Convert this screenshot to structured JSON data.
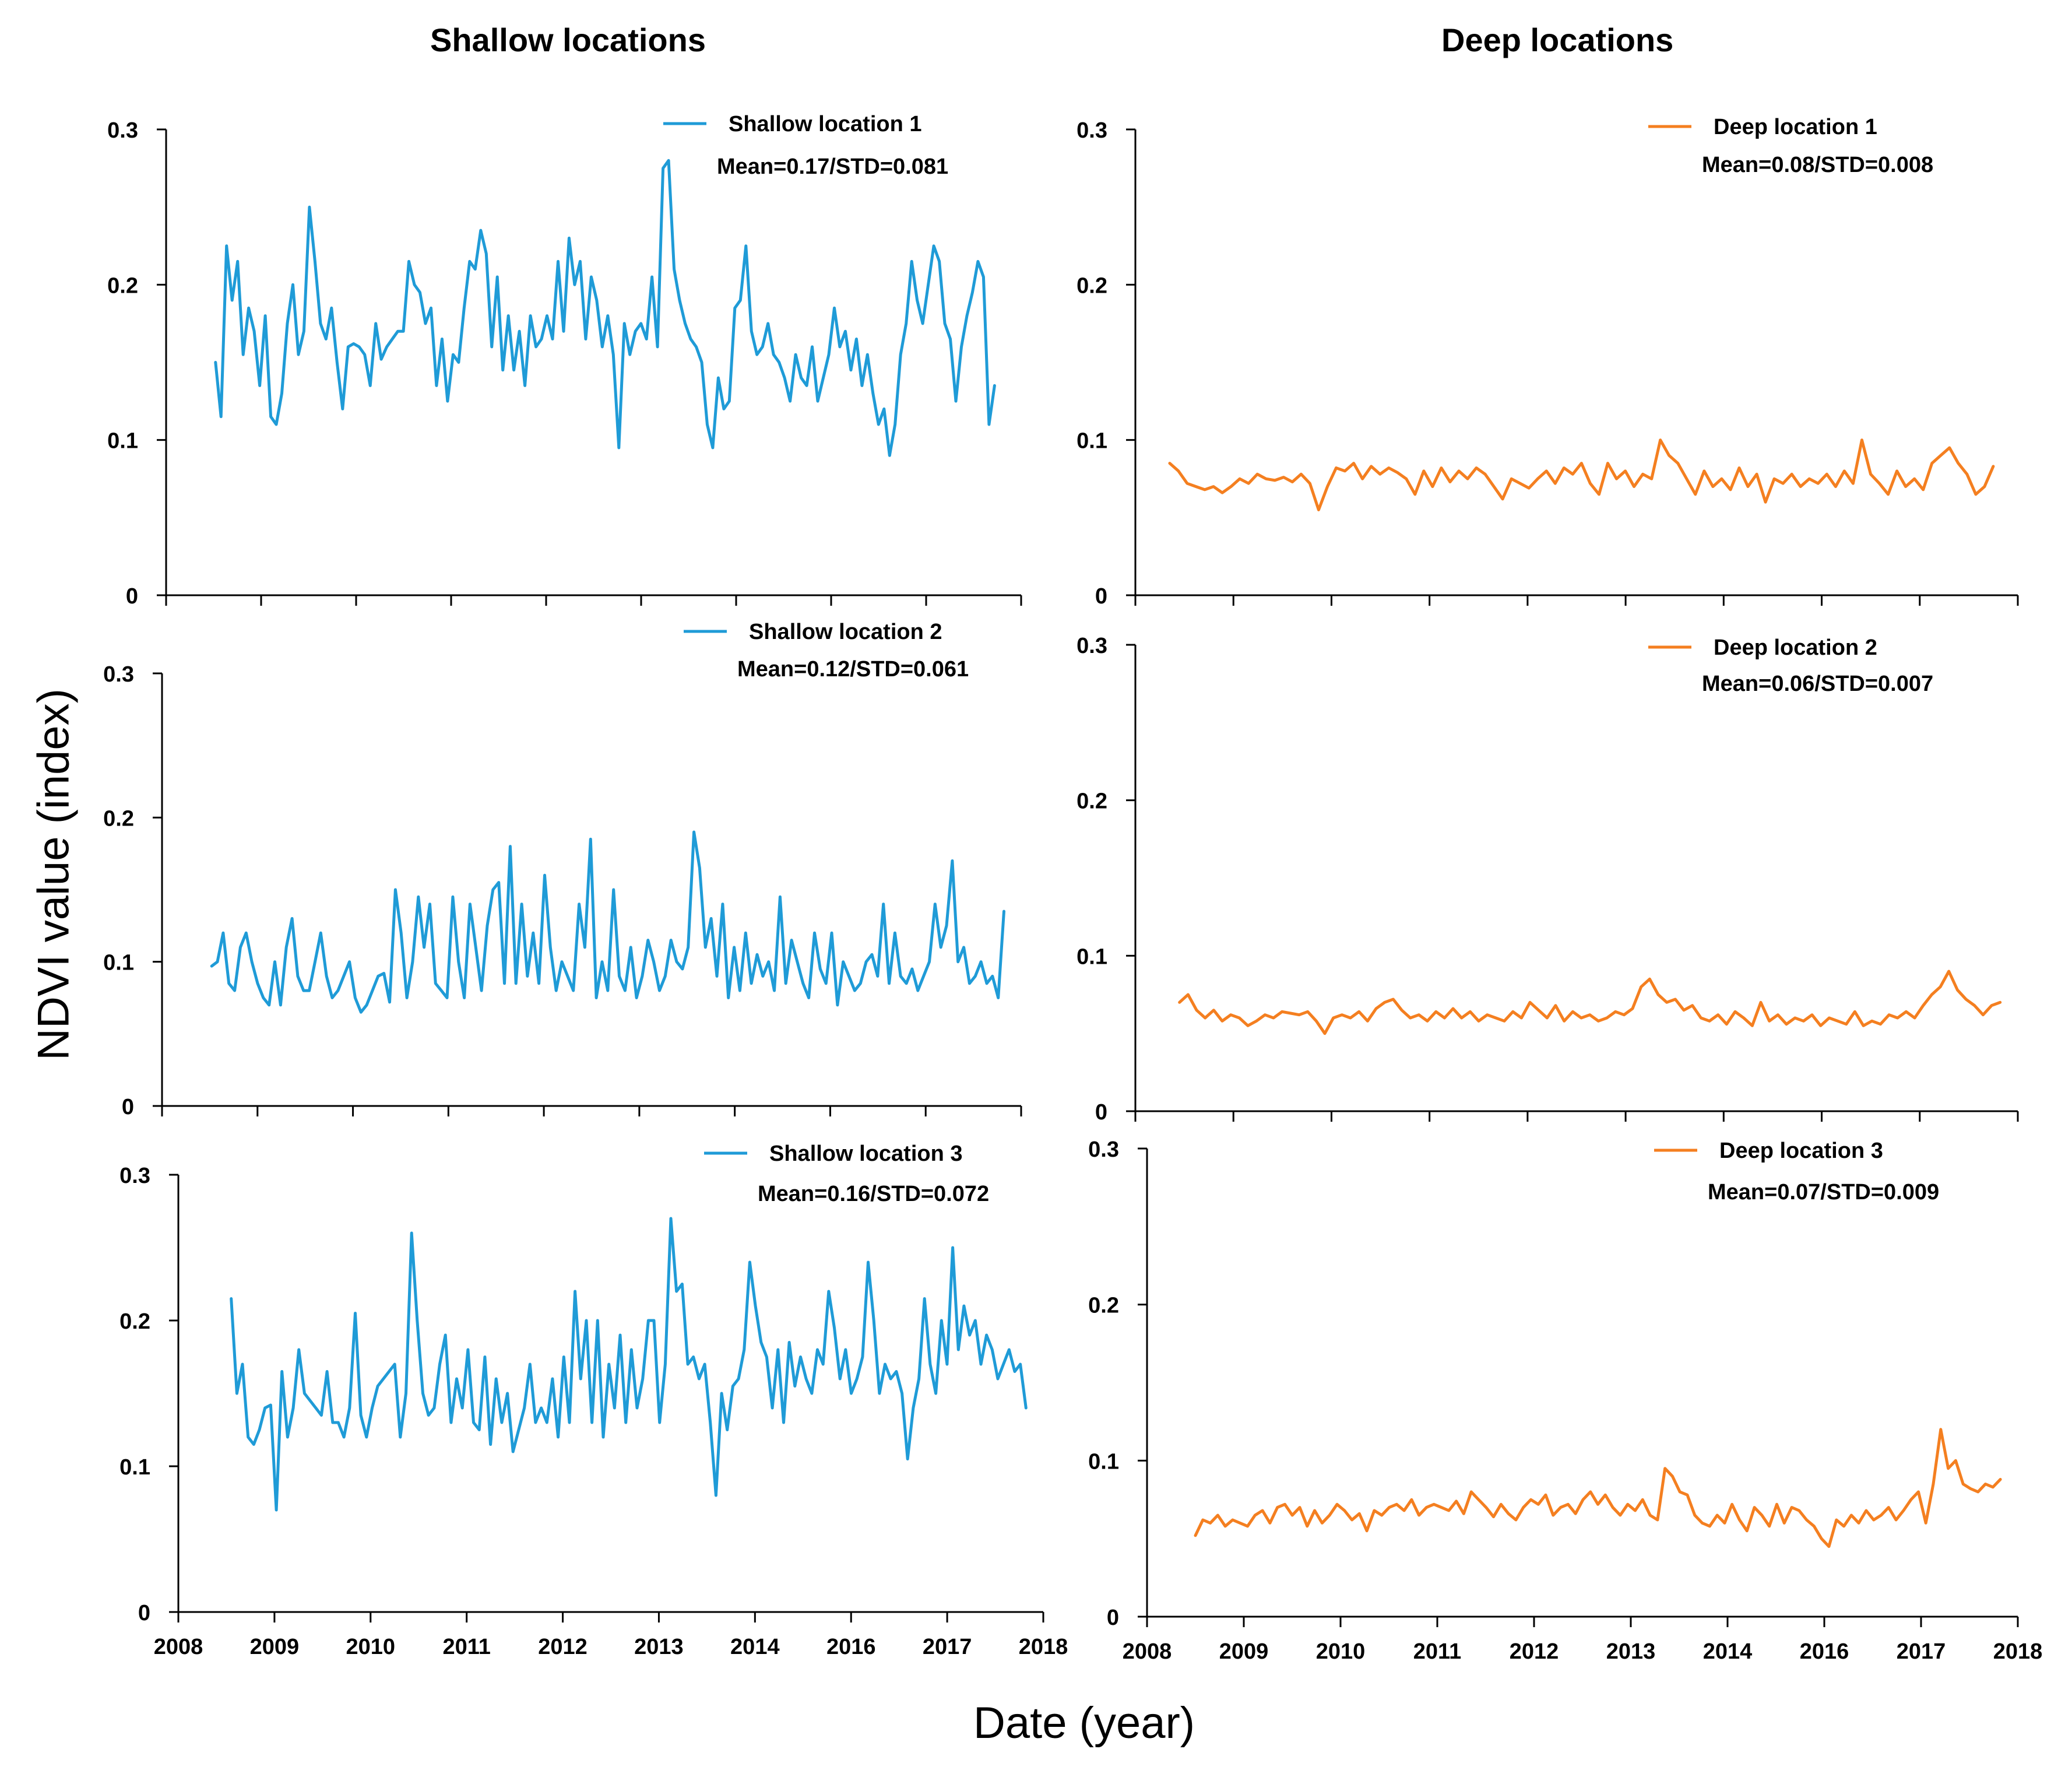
{
  "figure": {
    "column_titles": [
      "Shallow locations",
      "Deep locations"
    ],
    "ylabel": "NDVI value (index)",
    "xlabel": "Date (year)"
  },
  "colors": {
    "shallow": "#1f9bd7",
    "deep": "#f47f20",
    "axis": "#000000"
  },
  "chart_data": [
    {
      "type": "line",
      "panel": "shallow-1",
      "legend": "Shallow location 1",
      "stats": "Mean=0.17/STD=0.081",
      "x_ticks": [
        "2008",
        "2009",
        "2010",
        "2011",
        "2012",
        "2013",
        "2014",
        "2016",
        "2017",
        "2018"
      ],
      "y_ticks": [
        "0",
        "0.1",
        "0.2",
        "0.3"
      ],
      "ylim": [
        0,
        0.3
      ],
      "series": [
        {
          "name": "Shallow location 1",
          "color": "#1f9bd7",
          "x_range": [
            0.52,
            8.72
          ],
          "values": [
            0.15,
            0.115,
            0.225,
            0.19,
            0.215,
            0.155,
            0.185,
            0.17,
            0.135,
            0.18,
            0.115,
            0.11,
            0.13,
            0.175,
            0.2,
            0.155,
            0.17,
            0.25,
            0.215,
            0.175,
            0.165,
            0.185,
            0.15,
            0.12,
            0.16,
            0.162,
            0.16,
            0.155,
            0.135,
            0.175,
            0.152,
            0.16,
            0.165,
            0.17,
            0.17,
            0.215,
            0.2,
            0.195,
            0.175,
            0.185,
            0.135,
            0.165,
            0.125,
            0.155,
            0.15,
            0.185,
            0.215,
            0.21,
            0.235,
            0.22,
            0.16,
            0.205,
            0.145,
            0.18,
            0.145,
            0.17,
            0.135,
            0.18,
            0.16,
            0.165,
            0.18,
            0.165,
            0.215,
            0.17,
            0.23,
            0.2,
            0.215,
            0.165,
            0.205,
            0.19,
            0.16,
            0.18,
            0.155,
            0.095,
            0.175,
            0.155,
            0.17,
            0.175,
            0.165,
            0.205,
            0.16,
            0.275,
            0.28,
            0.21,
            0.19,
            0.175,
            0.165,
            0.16,
            0.15,
            0.11,
            0.095,
            0.14,
            0.12,
            0.125,
            0.185,
            0.19,
            0.225,
            0.17,
            0.155,
            0.16,
            0.175,
            0.155,
            0.15,
            0.14,
            0.125,
            0.155,
            0.14,
            0.135,
            0.16,
            0.125,
            0.14,
            0.155,
            0.185,
            0.16,
            0.17,
            0.145,
            0.165,
            0.135,
            0.155,
            0.13,
            0.11,
            0.12,
            0.09,
            0.11,
            0.155,
            0.175,
            0.215,
            0.19,
            0.175,
            0.2,
            0.225,
            0.215,
            0.175,
            0.165,
            0.125,
            0.16,
            0.18,
            0.195,
            0.215,
            0.205,
            0.11,
            0.135
          ]
        }
      ]
    },
    {
      "type": "line",
      "panel": "deep-1",
      "legend": "Deep location 1",
      "stats": "Mean=0.08/STD=0.008",
      "x_ticks": [
        "2008",
        "2009",
        "2010",
        "2011",
        "2012",
        "2013",
        "2014",
        "2016",
        "2017",
        "2018"
      ],
      "y_ticks": [
        "0",
        "0.1",
        "0.2",
        "0.3"
      ],
      "ylim": [
        0,
        0.3
      ],
      "series": [
        {
          "name": "Deep location 1",
          "color": "#f47f20",
          "x_range": [
            0.35,
            8.75
          ],
          "values": [
            0.085,
            0.08,
            0.072,
            0.07,
            0.068,
            0.07,
            0.066,
            0.07,
            0.075,
            0.072,
            0.078,
            0.075,
            0.074,
            0.076,
            0.073,
            0.078,
            0.072,
            0.055,
            0.07,
            0.082,
            0.08,
            0.085,
            0.075,
            0.083,
            0.078,
            0.082,
            0.079,
            0.075,
            0.065,
            0.08,
            0.07,
            0.082,
            0.073,
            0.08,
            0.075,
            0.082,
            0.078,
            0.07,
            0.062,
            0.075,
            0.072,
            0.069,
            0.075,
            0.08,
            0.072,
            0.082,
            0.078,
            0.085,
            0.072,
            0.065,
            0.085,
            0.075,
            0.08,
            0.07,
            0.078,
            0.075,
            0.1,
            0.09,
            0.085,
            0.075,
            0.065,
            0.08,
            0.07,
            0.075,
            0.068,
            0.082,
            0.07,
            0.078,
            0.06,
            0.075,
            0.072,
            0.078,
            0.07,
            0.075,
            0.072,
            0.078,
            0.07,
            0.08,
            0.072,
            0.1,
            0.078,
            0.072,
            0.065,
            0.08,
            0.07,
            0.075,
            0.068,
            0.085,
            0.09,
            0.095,
            0.085,
            0.078,
            0.065,
            0.07,
            0.083
          ]
        }
      ]
    },
    {
      "type": "line",
      "panel": "shallow-2",
      "legend": "Shallow location 2",
      "stats": "Mean=0.12/STD=0.061",
      "x_ticks": [
        "2008",
        "2009",
        "2010",
        "2011",
        "2012",
        "2013",
        "2014",
        "2016",
        "2017",
        "2018"
      ],
      "y_ticks": [
        "0",
        "0.1",
        "0.2",
        "0.3"
      ],
      "ylim": [
        0,
        0.3
      ],
      "series": [
        {
          "name": "Shallow location 2",
          "color": "#1f9bd7",
          "x_range": [
            0.52,
            8.82
          ],
          "values": [
            0.097,
            0.1,
            0.12,
            0.085,
            0.08,
            0.11,
            0.12,
            0.1,
            0.085,
            0.075,
            0.07,
            0.1,
            0.07,
            0.11,
            0.13,
            0.09,
            0.08,
            0.08,
            0.1,
            0.12,
            0.09,
            0.075,
            0.08,
            0.09,
            0.1,
            0.075,
            0.065,
            0.07,
            0.08,
            0.09,
            0.092,
            0.072,
            0.15,
            0.12,
            0.075,
            0.1,
            0.145,
            0.11,
            0.14,
            0.085,
            0.08,
            0.075,
            0.145,
            0.1,
            0.075,
            0.14,
            0.11,
            0.08,
            0.125,
            0.15,
            0.155,
            0.085,
            0.18,
            0.085,
            0.14,
            0.09,
            0.12,
            0.085,
            0.16,
            0.11,
            0.08,
            0.1,
            0.09,
            0.08,
            0.14,
            0.11,
            0.185,
            0.075,
            0.1,
            0.08,
            0.15,
            0.09,
            0.08,
            0.11,
            0.075,
            0.09,
            0.115,
            0.1,
            0.08,
            0.09,
            0.115,
            0.1,
            0.095,
            0.11,
            0.19,
            0.165,
            0.11,
            0.13,
            0.09,
            0.14,
            0.075,
            0.11,
            0.08,
            0.12,
            0.085,
            0.105,
            0.09,
            0.1,
            0.08,
            0.145,
            0.085,
            0.115,
            0.1,
            0.085,
            0.075,
            0.12,
            0.095,
            0.085,
            0.12,
            0.07,
            0.1,
            0.09,
            0.08,
            0.085,
            0.1,
            0.105,
            0.09,
            0.14,
            0.085,
            0.12,
            0.09,
            0.085,
            0.095,
            0.08,
            0.09,
            0.1,
            0.14,
            0.11,
            0.125,
            0.17,
            0.1,
            0.11,
            0.085,
            0.09,
            0.1,
            0.085,
            0.09,
            0.075,
            0.135
          ]
        }
      ]
    },
    {
      "type": "line",
      "panel": "deep-2",
      "legend": "Deep location 2",
      "stats": "Mean=0.06/STD=0.007",
      "x_ticks": [
        "2008",
        "2009",
        "2010",
        "2011",
        "2012",
        "2013",
        "2014",
        "2016",
        "2017",
        "2018"
      ],
      "y_ticks": [
        "0",
        "0.1",
        "0.2",
        "0.3"
      ],
      "ylim": [
        0,
        0.3
      ],
      "series": [
        {
          "name": "Deep location 2",
          "color": "#f47f20",
          "x_range": [
            0.45,
            8.82
          ],
          "values": [
            0.07,
            0.075,
            0.065,
            0.06,
            0.065,
            0.058,
            0.062,
            0.06,
            0.055,
            0.058,
            0.062,
            0.06,
            0.064,
            0.063,
            0.062,
            0.064,
            0.058,
            0.05,
            0.06,
            0.062,
            0.06,
            0.064,
            0.058,
            0.066,
            0.07,
            0.072,
            0.065,
            0.06,
            0.062,
            0.058,
            0.064,
            0.06,
            0.066,
            0.06,
            0.064,
            0.058,
            0.062,
            0.06,
            0.058,
            0.064,
            0.06,
            0.07,
            0.065,
            0.06,
            0.068,
            0.058,
            0.064,
            0.06,
            0.062,
            0.058,
            0.06,
            0.064,
            0.062,
            0.066,
            0.08,
            0.085,
            0.075,
            0.07,
            0.072,
            0.065,
            0.068,
            0.06,
            0.058,
            0.062,
            0.056,
            0.064,
            0.06,
            0.055,
            0.07,
            0.058,
            0.062,
            0.056,
            0.06,
            0.058,
            0.062,
            0.055,
            0.06,
            0.058,
            0.056,
            0.064,
            0.055,
            0.058,
            0.056,
            0.062,
            0.06,
            0.064,
            0.06,
            0.068,
            0.075,
            0.08,
            0.09,
            0.078,
            0.072,
            0.068,
            0.062,
            0.068,
            0.07
          ]
        }
      ]
    },
    {
      "type": "line",
      "panel": "shallow-3",
      "legend": "Shallow location 3",
      "stats": "Mean=0.16/STD=0.072",
      "x_ticks": [
        "2008",
        "2009",
        "2010",
        "2011",
        "2012",
        "2013",
        "2014",
        "2016",
        "2017",
        "2018"
      ],
      "y_ticks": [
        "0",
        "0.1",
        "0.2",
        "0.3"
      ],
      "ylim": [
        0,
        0.3
      ],
      "series": [
        {
          "name": "Shallow location 3",
          "color": "#1f9bd7",
          "x_range": [
            0.55,
            8.82
          ],
          "values": [
            0.215,
            0.15,
            0.17,
            0.12,
            0.115,
            0.125,
            0.14,
            0.142,
            0.07,
            0.165,
            0.12,
            0.14,
            0.18,
            0.15,
            0.145,
            0.14,
            0.135,
            0.165,
            0.13,
            0.13,
            0.12,
            0.14,
            0.205,
            0.135,
            0.12,
            0.14,
            0.155,
            0.16,
            0.165,
            0.17,
            0.12,
            0.15,
            0.26,
            0.2,
            0.15,
            0.135,
            0.14,
            0.17,
            0.19,
            0.13,
            0.16,
            0.14,
            0.18,
            0.13,
            0.125,
            0.175,
            0.115,
            0.16,
            0.13,
            0.15,
            0.11,
            0.125,
            0.14,
            0.17,
            0.13,
            0.14,
            0.13,
            0.16,
            0.12,
            0.175,
            0.13,
            0.22,
            0.16,
            0.2,
            0.13,
            0.2,
            0.12,
            0.17,
            0.14,
            0.19,
            0.13,
            0.18,
            0.14,
            0.16,
            0.2,
            0.2,
            0.13,
            0.17,
            0.27,
            0.22,
            0.225,
            0.17,
            0.175,
            0.16,
            0.17,
            0.13,
            0.08,
            0.15,
            0.125,
            0.155,
            0.16,
            0.18,
            0.24,
            0.21,
            0.185,
            0.175,
            0.14,
            0.18,
            0.13,
            0.185,
            0.155,
            0.175,
            0.16,
            0.15,
            0.18,
            0.17,
            0.22,
            0.195,
            0.16,
            0.18,
            0.15,
            0.16,
            0.175,
            0.24,
            0.2,
            0.15,
            0.17,
            0.16,
            0.165,
            0.15,
            0.105,
            0.14,
            0.16,
            0.215,
            0.17,
            0.15,
            0.2,
            0.17,
            0.25,
            0.18,
            0.21,
            0.19,
            0.2,
            0.17,
            0.19,
            0.18,
            0.16,
            0.17,
            0.18,
            0.165,
            0.17,
            0.14
          ]
        }
      ]
    },
    {
      "type": "line",
      "panel": "deep-3",
      "legend": "Deep location 3",
      "stats": "Mean=0.07/STD=0.009",
      "x_ticks": [
        "2008",
        "2009",
        "2010",
        "2011",
        "2012",
        "2013",
        "2014",
        "2016",
        "2017",
        "2018"
      ],
      "y_ticks": [
        "0",
        "0.1",
        "0.2",
        "0.3"
      ],
      "ylim": [
        0,
        0.3
      ],
      "series": [
        {
          "name": "Deep location 3",
          "color": "#f47f20",
          "x_range": [
            0.5,
            8.82
          ],
          "values": [
            0.052,
            0.062,
            0.06,
            0.065,
            0.058,
            0.062,
            0.06,
            0.058,
            0.065,
            0.068,
            0.06,
            0.07,
            0.072,
            0.065,
            0.07,
            0.058,
            0.068,
            0.06,
            0.065,
            0.072,
            0.068,
            0.062,
            0.066,
            0.055,
            0.068,
            0.065,
            0.07,
            0.072,
            0.068,
            0.075,
            0.065,
            0.07,
            0.072,
            0.07,
            0.068,
            0.074,
            0.066,
            0.08,
            0.075,
            0.07,
            0.064,
            0.072,
            0.066,
            0.062,
            0.07,
            0.075,
            0.072,
            0.078,
            0.065,
            0.07,
            0.072,
            0.066,
            0.075,
            0.08,
            0.072,
            0.078,
            0.07,
            0.065,
            0.072,
            0.068,
            0.075,
            0.065,
            0.062,
            0.095,
            0.09,
            0.08,
            0.078,
            0.065,
            0.06,
            0.058,
            0.065,
            0.06,
            0.072,
            0.062,
            0.055,
            0.07,
            0.065,
            0.058,
            0.072,
            0.06,
            0.07,
            0.068,
            0.062,
            0.058,
            0.05,
            0.045,
            0.062,
            0.058,
            0.065,
            0.06,
            0.068,
            0.062,
            0.065,
            0.07,
            0.062,
            0.068,
            0.075,
            0.08,
            0.06,
            0.085,
            0.12,
            0.095,
            0.1,
            0.085,
            0.082,
            0.08,
            0.085,
            0.083,
            0.088
          ]
        }
      ]
    }
  ]
}
